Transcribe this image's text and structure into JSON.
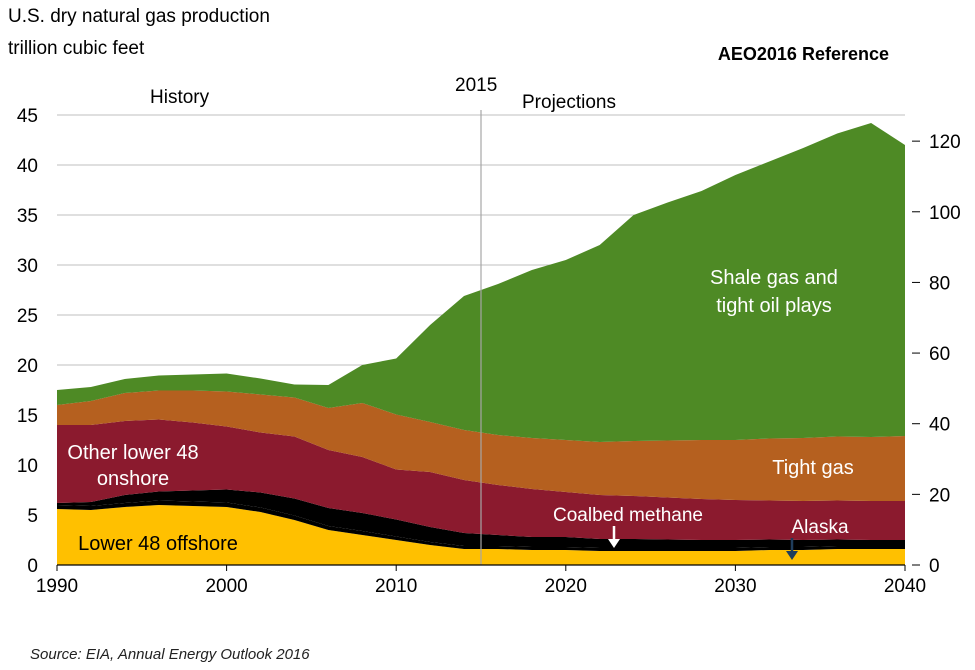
{
  "header": {
    "title_line1": "U.S. dry natural gas production",
    "title_line2": "trillion cubic feet",
    "scenario": "AEO2016 Reference"
  },
  "source": "Source:  EIA, Annual Energy Outlook 2016",
  "colors": {
    "lower48_offshore": "#FFC000",
    "alaska": "#000000",
    "coalbed_methane": "#000000",
    "other_lower48_onshore": "#8B1A2E",
    "tight_gas": "#B5601F",
    "shale_gas": "#4E8A25",
    "grid": "#BFBFBF",
    "divider": "#A6A6A6"
  },
  "chart_data": {
    "type": "area",
    "stacked": true,
    "title": "U.S. dry natural gas production",
    "ylabel": "trillion cubic feet",
    "y2label": "",
    "xlim": [
      1990,
      2040
    ],
    "ylim": [
      0,
      45
    ],
    "y2lim": [
      0,
      127.4
    ],
    "xticks": [
      1990,
      2000,
      2010,
      2020,
      2030,
      2040
    ],
    "yticks": [
      0,
      5,
      10,
      15,
      20,
      25,
      30,
      35,
      40,
      45
    ],
    "y2ticks": [
      0,
      20,
      40,
      60,
      80,
      100,
      120
    ],
    "grid": true,
    "divider_year": 2015,
    "divider_label": "2015",
    "history_label": "History",
    "projections_label": "Projections",
    "x": [
      1990,
      1992,
      1994,
      1996,
      1998,
      2000,
      2002,
      2004,
      2006,
      2008,
      2010,
      2012,
      2014,
      2016,
      2018,
      2020,
      2022,
      2024,
      2026,
      2028,
      2030,
      2032,
      2034,
      2036,
      2038,
      2040
    ],
    "series": [
      {
        "name": "Lower 48 offshore",
        "key": "lower48_offshore",
        "values": [
          5.6,
          5.5,
          5.8,
          6.0,
          5.9,
          5.8,
          5.3,
          4.5,
          3.5,
          3.0,
          2.5,
          2.0,
          1.6,
          1.6,
          1.5,
          1.5,
          1.4,
          1.4,
          1.4,
          1.4,
          1.4,
          1.5,
          1.5,
          1.6,
          1.6,
          1.6
        ]
      },
      {
        "name": "Alaska",
        "key": "alaska",
        "values": [
          0.4,
          0.4,
          0.4,
          0.45,
          0.45,
          0.45,
          0.45,
          0.45,
          0.4,
          0.4,
          0.35,
          0.3,
          0.3,
          0.3,
          0.3,
          0.3,
          0.3,
          0.3,
          0.3,
          0.3,
          0.3,
          0.3,
          0.3,
          0.3,
          0.3,
          0.3
        ]
      },
      {
        "name": "Coalbed methane",
        "key": "coalbed_methane",
        "values": [
          0.2,
          0.4,
          0.8,
          0.9,
          1.1,
          1.3,
          1.5,
          1.7,
          1.8,
          1.8,
          1.7,
          1.5,
          1.3,
          1.1,
          1.0,
          1.0,
          0.9,
          0.9,
          0.85,
          0.8,
          0.8,
          0.75,
          0.7,
          0.65,
          0.6,
          0.6
        ]
      },
      {
        "name": "Other lower 48 onshore",
        "key": "other_lower48_onshore",
        "values": [
          7.8,
          7.7,
          7.4,
          7.2,
          6.8,
          6.3,
          6.0,
          6.2,
          5.8,
          5.6,
          5.0,
          5.5,
          5.3,
          5.0,
          4.8,
          4.5,
          4.4,
          4.3,
          4.2,
          4.1,
          4.0,
          3.9,
          3.9,
          3.9,
          3.9,
          3.9
        ]
      },
      {
        "name": "Tight gas",
        "key": "tight_gas",
        "values": [
          2.0,
          2.4,
          2.8,
          2.9,
          3.2,
          3.5,
          3.8,
          3.9,
          4.2,
          5.4,
          5.5,
          5.0,
          5.0,
          5.0,
          5.1,
          5.2,
          5.3,
          5.5,
          5.7,
          5.9,
          6.0,
          6.2,
          6.3,
          6.4,
          6.4,
          6.5
        ]
      },
      {
        "name": "Shale gas and tight oil plays",
        "key": "shale_gas",
        "values": [
          1.5,
          1.4,
          1.4,
          1.5,
          1.6,
          1.8,
          1.6,
          1.3,
          2.3,
          3.8,
          5.6,
          9.7,
          13.4,
          15.1,
          16.8,
          18.0,
          19.7,
          22.6,
          23.8,
          24.9,
          26.5,
          27.7,
          29.0,
          30.3,
          31.4,
          29.1
        ]
      }
    ],
    "annotations": {
      "coalbed_methane_label": "Coalbed methane",
      "alaska_label": "Alaska",
      "shale_label_line1": "Shale gas and",
      "shale_label_line2": "tight oil plays",
      "tight_label": "Tight gas",
      "other_label_line1": "Other lower 48",
      "other_label_line2": "onshore",
      "offshore_label": "Lower 48 offshore"
    }
  }
}
